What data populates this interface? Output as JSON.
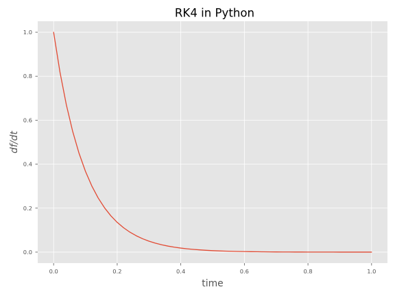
{
  "chart_data": {
    "type": "line",
    "title": "RK4 in Python",
    "xlabel": "time",
    "ylabel": "df/dt",
    "xlim": [
      -0.05,
      1.05
    ],
    "ylim": [
      -0.05,
      1.05
    ],
    "xticks": [
      0.0,
      0.2,
      0.4,
      0.6,
      0.8,
      1.0
    ],
    "yticks": [
      0.0,
      0.2,
      0.4,
      0.6,
      0.8,
      1.0
    ],
    "xtick_labels": [
      "0.0",
      "0.2",
      "0.4",
      "0.6",
      "0.8",
      "1.0"
    ],
    "ytick_labels": [
      "0.0",
      "0.2",
      "0.4",
      "0.6",
      "0.8",
      "1.0"
    ],
    "grid": true,
    "colors": {
      "background": "#e5e5e5",
      "grid": "#ffffff",
      "line": "#e24a33"
    },
    "series": [
      {
        "x": [
          0.0,
          0.02,
          0.04,
          0.06,
          0.08,
          0.1,
          0.12,
          0.14,
          0.16,
          0.18,
          0.2,
          0.22,
          0.24,
          0.26,
          0.28,
          0.3,
          0.32,
          0.34,
          0.36,
          0.38,
          0.4,
          0.42,
          0.44,
          0.46,
          0.48,
          0.5,
          0.52,
          0.54,
          0.56,
          0.58,
          0.6,
          0.62,
          0.64,
          0.66,
          0.68,
          0.7,
          0.72,
          0.74,
          0.76,
          0.78,
          0.8,
          0.82,
          0.84,
          0.86,
          0.88,
          0.9,
          0.92,
          0.94,
          0.96,
          0.98,
          1.0
        ],
        "y": [
          1.0,
          0.8187,
          0.6703,
          0.5488,
          0.4493,
          0.3679,
          0.3012,
          0.2466,
          0.2019,
          0.1653,
          0.1353,
          0.1108,
          0.0907,
          0.0743,
          0.0608,
          0.0498,
          0.0408,
          0.0334,
          0.0273,
          0.0224,
          0.0183,
          0.015,
          0.0123,
          0.0101,
          0.0082,
          0.0067,
          0.0055,
          0.0045,
          0.0037,
          0.003,
          0.0025,
          0.002,
          0.0017,
          0.0014,
          0.0011,
          0.0009,
          0.0007,
          0.0006,
          0.0005,
          0.0004,
          0.0003,
          0.0003,
          0.0002,
          0.0002,
          0.0002,
          0.0001,
          0.0001,
          0.0001,
          0.0001,
          0.0001,
          0.0
        ]
      }
    ]
  }
}
